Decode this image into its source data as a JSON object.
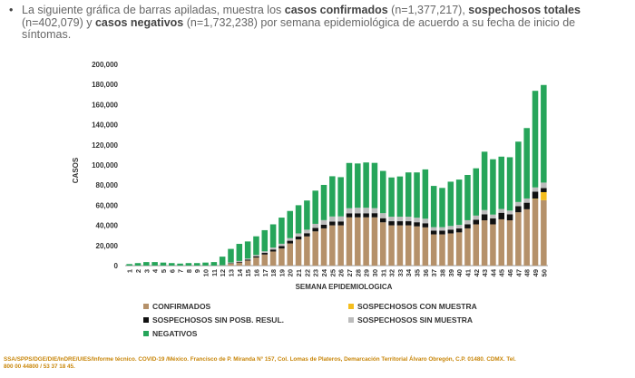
{
  "intro": {
    "bullet": "•",
    "t1": "La siguiente gráfica de barras apiladas, muestra los ",
    "b1": "casos confirmados",
    "t2": " (n=1,377,217), ",
    "b2": "sospechosos totales",
    "t3": " (n=402,079) y ",
    "b3": "casos negativos",
    "t4": " (n=1,732,238) por semana epidemiológica de acuerdo a su fecha de inicio de síntomas."
  },
  "chart_data": {
    "type": "bar",
    "stacked": true,
    "xlabel": "SEMANA EPIDEMIOLOGICA",
    "ylabel": "CASOS",
    "ylim": [
      0,
      200000
    ],
    "yticks": [
      0,
      20000,
      40000,
      60000,
      80000,
      100000,
      120000,
      140000,
      160000,
      180000,
      200000
    ],
    "ytick_labels": [
      "0",
      "20,000",
      "40,000",
      "60,000",
      "80,000",
      "100,000",
      "120,000",
      "140,000",
      "160,000",
      "180,000",
      "200,000"
    ],
    "categories": [
      "1",
      "2",
      "3",
      "4",
      "5",
      "6",
      "7",
      "8",
      "9",
      "10",
      "11",
      "12",
      "13",
      "14",
      "15",
      "16",
      "17",
      "18",
      "19",
      "20",
      "21",
      "22",
      "23",
      "24",
      "25",
      "26",
      "27",
      "28",
      "29",
      "30",
      "31",
      "32",
      "33",
      "34",
      "35",
      "36",
      "37",
      "38",
      "39",
      "40",
      "41",
      "42",
      "43",
      "44",
      "45",
      "46",
      "47",
      "48",
      "49",
      "50"
    ],
    "series": [
      {
        "name": "CONFIRMADOS",
        "color": "#b5916a",
        "values": [
          0,
          0,
          0,
          0,
          0,
          0,
          0,
          0,
          0,
          0,
          0,
          200,
          2000,
          3000,
          5000,
          8000,
          11000,
          14000,
          17000,
          22000,
          26000,
          29000,
          34000,
          37000,
          40000,
          40000,
          48000,
          48000,
          48000,
          48000,
          43000,
          40000,
          40000,
          40000,
          39000,
          38000,
          31000,
          31000,
          32000,
          33000,
          37000,
          41000,
          45000,
          41000,
          46000,
          45000,
          53000,
          56000,
          66000,
          65000
        ]
      },
      {
        "name": "SOSPECHOSOS CON MUESTRA",
        "color": "#f4bd1d",
        "values": [
          0,
          0,
          0,
          0,
          0,
          0,
          0,
          0,
          0,
          0,
          0,
          0,
          0,
          0,
          0,
          0,
          0,
          0,
          0,
          0,
          0,
          0,
          0,
          0,
          0,
          0,
          0,
          0,
          0,
          0,
          0,
          0,
          0,
          0,
          0,
          0,
          0,
          0,
          0,
          0,
          0,
          0,
          0,
          0,
          0,
          0,
          0,
          0,
          500,
          8000
        ]
      },
      {
        "name": "SOSPECHOSOS SIN POSB. RESUL.",
        "color": "#111111",
        "values": [
          0,
          0,
          0,
          0,
          0,
          0,
          0,
          0,
          0,
          0,
          0,
          0,
          500,
          800,
          1000,
          1300,
          1600,
          2000,
          2400,
          2700,
          3000,
          3200,
          3500,
          3700,
          3800,
          3900,
          4000,
          4000,
          4000,
          4100,
          4100,
          4100,
          4100,
          4100,
          4100,
          4100,
          3700,
          3700,
          3800,
          3900,
          4100,
          4500,
          6000,
          6000,
          6500,
          6000,
          6000,
          6500,
          7000,
          4000
        ]
      },
      {
        "name": "SOSPECHOSOS SIN MUESTRA",
        "color": "#bcbcbc",
        "values": [
          0,
          0,
          0,
          0,
          0,
          0,
          0,
          0,
          0,
          0,
          0,
          200,
          600,
          800,
          1000,
          1300,
          1600,
          2000,
          2300,
          2600,
          3000,
          3500,
          4000,
          4500,
          5000,
          5000,
          5000,
          5500,
          5500,
          5000,
          5000,
          4500,
          4500,
          4500,
          4500,
          4500,
          3500,
          3500,
          3600,
          3600,
          4000,
          4200,
          4200,
          3700,
          3800,
          3700,
          4200,
          4200,
          4200,
          5500
        ]
      },
      {
        "name": "NEGATIVOS",
        "color": "#26a55a",
        "values": [
          1500,
          2500,
          3500,
          3500,
          3000,
          2500,
          2000,
          2500,
          2500,
          3000,
          3500,
          8500,
          13500,
          17000,
          17000,
          18500,
          21000,
          23000,
          26000,
          27000,
          28000,
          29000,
          33000,
          35000,
          40000,
          39000,
          45000,
          44000,
          45000,
          45000,
          42000,
          39000,
          40000,
          44000,
          45000,
          49000,
          41000,
          39000,
          44000,
          45000,
          45000,
          47000,
          58000,
          55000,
          52000,
          53000,
          60000,
          70000,
          96000,
          97000
        ]
      }
    ]
  },
  "legend": [
    {
      "label": "CONFIRMADOS",
      "color": "#b5916a"
    },
    {
      "label": "SOSPECHOSOS CON MUESTRA",
      "color": "#f4bd1d"
    },
    {
      "label": "SOSPECHOSOS SIN POSB. RESUL.",
      "color": "#111111"
    },
    {
      "label": "SOSPECHOSOS SIN MUESTRA",
      "color": "#bcbcbc"
    },
    {
      "label": "NEGATIVOS",
      "color": "#26a55a"
    }
  ],
  "source": {
    "line1": "SSA/SPPS/DGE/DIE/InDRE/UIES/Informe técnico. COVID-19 /México. Francisco de P. Miranda N° 157, Col. Lomas de Plateros, Demarcación Territorial Álvaro Obregón, C.P. 01480. CDMX. Tel.",
    "line2": "800 00 44800 / 53 37 18 45."
  }
}
